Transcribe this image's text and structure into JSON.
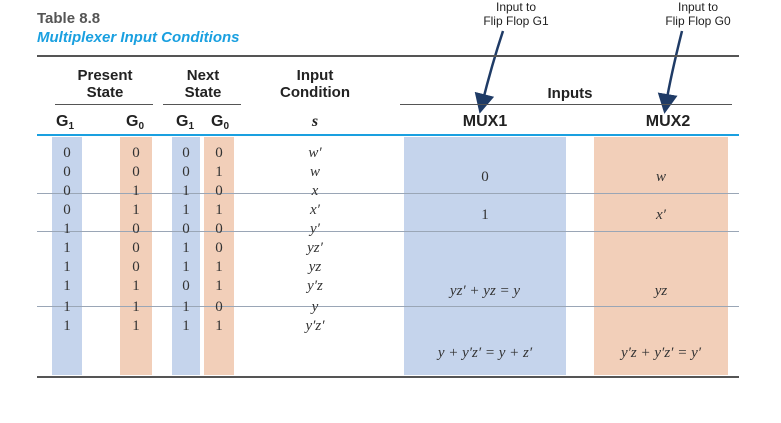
{
  "title": {
    "number": "Table 8.8",
    "caption": "Multiplexer Input Conditions"
  },
  "annotations": {
    "g1": "Input to\nFlip Flop G1",
    "g0": "Input to\nFlip Flop G0"
  },
  "headers": {
    "present_state": "Present\nState",
    "next_state": "Next\nState",
    "input_condition": "Input\nCondition",
    "inputs": "Inputs",
    "g_letter": "G",
    "g1_sub": "1",
    "g0_sub": "0",
    "s": "s",
    "mux1": "MUX1",
    "mux2": "MUX2"
  },
  "rows": [
    {
      "g1": "0",
      "g0": "0",
      "n1": "0",
      "n0": "0",
      "s": "w′"
    },
    {
      "g1": "0",
      "g0": "0",
      "n1": "0",
      "n0": "1",
      "s": "w"
    },
    {
      "g1": "0",
      "g0": "1",
      "n1": "1",
      "n0": "0",
      "s": "x"
    },
    {
      "g1": "0",
      "g0": "1",
      "n1": "1",
      "n0": "1",
      "s": "x′"
    },
    {
      "g1": "1",
      "g0": "0",
      "n1": "0",
      "n0": "0",
      "s": "y′"
    },
    {
      "g1": "1",
      "g0": "0",
      "n1": "1",
      "n0": "0",
      "s": "yz′"
    },
    {
      "g1": "1",
      "g0": "0",
      "n1": "1",
      "n0": "1",
      "s": "yz"
    },
    {
      "g1": "1",
      "g0": "1",
      "n1": "0",
      "n0": "1",
      "s": "y′z"
    },
    {
      "g1": "1",
      "g0": "1",
      "n1": "1",
      "n0": "0",
      "s": "y"
    },
    {
      "g1": "1",
      "g0": "1",
      "n1": "1",
      "n0": "1",
      "s": "y′z′"
    }
  ],
  "mux": [
    {
      "mux1": "0",
      "mux2": "w"
    },
    {
      "mux1": "1",
      "mux2": "x′"
    },
    {
      "mux1": "yz′ + yz = y",
      "mux2": "yz"
    },
    {
      "mux1": "y + y′z′ = y + z′",
      "mux2": "y′z + y′z′ = y′"
    }
  ],
  "colors": {
    "blue_band": "#c5d4ec",
    "peach_band": "#f2cfb9",
    "accent_rule": "#1aa0e0",
    "caption": "#1aa0e0"
  }
}
